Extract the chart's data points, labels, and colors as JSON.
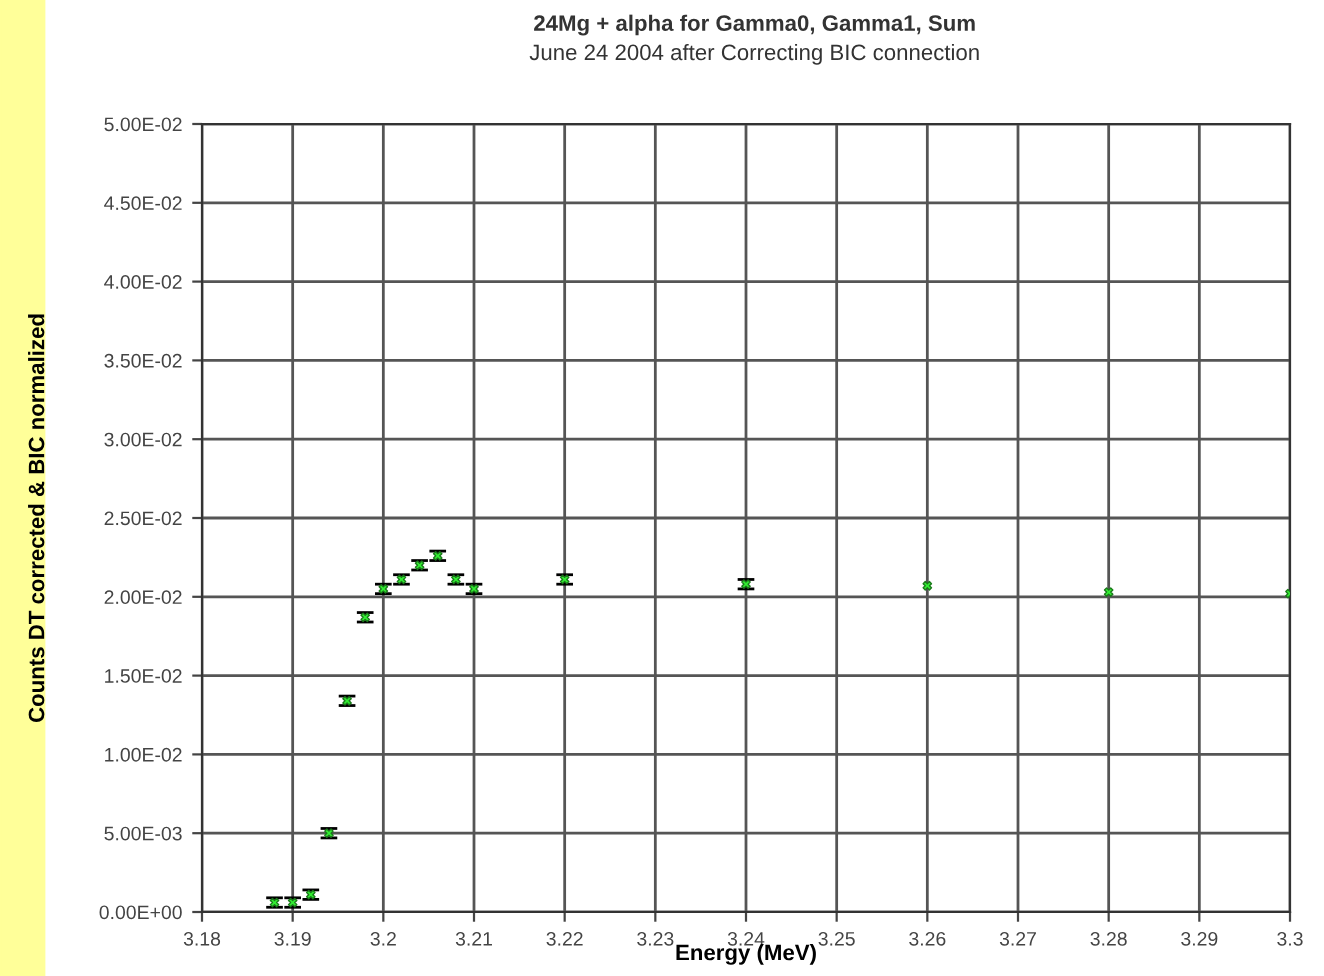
{
  "chart_data": {
    "type": "scatter",
    "title": "24Mg + alpha for Gamma0, Gamma1, Sum",
    "subtitle": "June 24 2004 after Correcting BIC connection",
    "xlabel": "Energy (MeV)",
    "ylabel": "Counts DT corrected & BIC normalized",
    "series": [
      {
        "color": "#33ee33",
        "x": [
          3.188,
          3.19,
          3.192,
          3.194,
          3.196,
          3.198,
          3.2,
          3.202,
          3.204,
          3.206,
          3.208,
          3.21,
          3.22,
          3.24,
          3.26,
          3.28,
          3.3
        ],
        "values": [
          0.0006,
          0.0006,
          0.0011,
          0.005,
          0.0134,
          0.0187,
          0.0205,
          0.0211,
          0.022,
          0.0226,
          0.0211,
          0.0205,
          0.0211,
          0.0208,
          0.0207,
          0.0203,
          0.0202
        ],
        "errors": [
          0.0003,
          0.0003,
          0.0003,
          0.0003,
          0.0003,
          0.0003,
          0.0003,
          0.0003,
          0.0003,
          0.0003,
          0.0003,
          0.0003,
          0.0003,
          0.0003,
          null,
          null,
          null
        ]
      }
    ],
    "marker": "cross",
    "grid": true,
    "xlim": [
      3.18,
      3.3
    ],
    "xticks": [
      3.18,
      3.19,
      {
        "value": 3.2,
        "label": "3.2"
      },
      3.21,
      3.22,
      3.23,
      3.24,
      3.25,
      3.26,
      3.27,
      3.28,
      3.29,
      {
        "value": 3.3,
        "label": "3.3"
      }
    ],
    "ylim": [
      0,
      0.05
    ],
    "yticks": [
      {
        "value": 0,
        "label": "0.00E+00"
      },
      {
        "value": 0.005,
        "label": "5.00E-03"
      },
      {
        "value": 0.01,
        "label": "1.00E-02"
      },
      {
        "value": 0.015,
        "label": "1.50E-02"
      },
      {
        "value": 0.02,
        "label": "2.00E-02"
      },
      {
        "value": 0.025,
        "label": "2.50E-02"
      },
      {
        "value": 0.03,
        "label": "3.00E-02"
      },
      {
        "value": 0.035,
        "label": "3.50E-02"
      },
      {
        "value": 0.04,
        "label": "4.00E-02"
      },
      {
        "value": 0.045,
        "label": "4.50E-02"
      },
      {
        "value": 0.05,
        "label": "5.00E-02"
      }
    ]
  }
}
